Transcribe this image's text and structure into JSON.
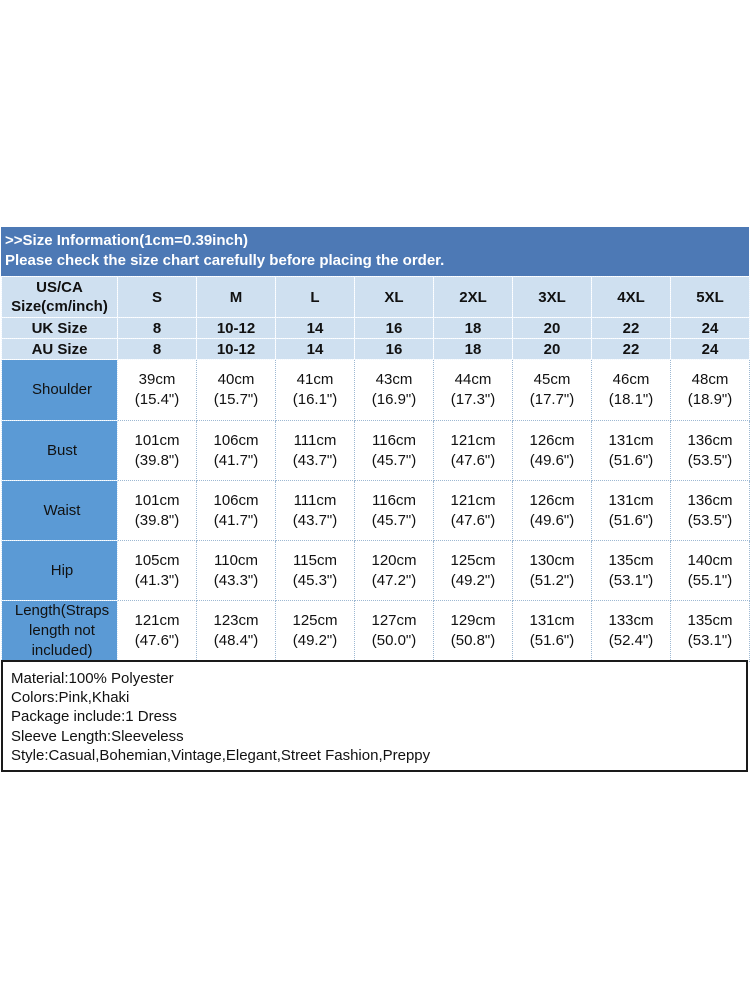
{
  "banner": {
    "line1": ">>Size Information(1cm=0.39inch)",
    "line2": "Please check the size chart carefully before placing the order."
  },
  "size_table": {
    "corner_label_line1": "US/CA",
    "corner_label_line2": "Size(cm/inch)",
    "sizes": [
      "S",
      "M",
      "L",
      "XL",
      "2XL",
      "3XL",
      "4XL",
      "5XL"
    ],
    "conversion_rows": [
      {
        "label": "UK Size",
        "values": [
          "8",
          "10-12",
          "14",
          "16",
          "18",
          "20",
          "22",
          "24"
        ]
      },
      {
        "label": "AU Size",
        "values": [
          "8",
          "10-12",
          "14",
          "16",
          "18",
          "20",
          "22",
          "24"
        ]
      }
    ],
    "measurement_rows": [
      {
        "label": "Shoulder",
        "cells": [
          {
            "cm": "39cm",
            "in": "(15.4\")"
          },
          {
            "cm": "40cm",
            "in": "(15.7\")"
          },
          {
            "cm": "41cm",
            "in": "(16.1\")"
          },
          {
            "cm": "43cm",
            "in": "(16.9\")"
          },
          {
            "cm": "44cm",
            "in": "(17.3\")"
          },
          {
            "cm": "45cm",
            "in": "(17.7\")"
          },
          {
            "cm": "46cm",
            "in": "(18.1\")"
          },
          {
            "cm": "48cm",
            "in": "(18.9\")"
          }
        ]
      },
      {
        "label": "Bust",
        "cells": [
          {
            "cm": "101cm",
            "in": "(39.8\")"
          },
          {
            "cm": "106cm",
            "in": "(41.7\")"
          },
          {
            "cm": "111cm",
            "in": "(43.7\")"
          },
          {
            "cm": "116cm",
            "in": "(45.7\")"
          },
          {
            "cm": "121cm",
            "in": "(47.6\")"
          },
          {
            "cm": "126cm",
            "in": "(49.6\")"
          },
          {
            "cm": "131cm",
            "in": "(51.6\")"
          },
          {
            "cm": "136cm",
            "in": "(53.5\")"
          }
        ]
      },
      {
        "label": "Waist",
        "cells": [
          {
            "cm": "101cm",
            "in": "(39.8\")"
          },
          {
            "cm": "106cm",
            "in": "(41.7\")"
          },
          {
            "cm": "111cm",
            "in": "(43.7\")"
          },
          {
            "cm": "116cm",
            "in": "(45.7\")"
          },
          {
            "cm": "121cm",
            "in": "(47.6\")"
          },
          {
            "cm": "126cm",
            "in": "(49.6\")"
          },
          {
            "cm": "131cm",
            "in": "(51.6\")"
          },
          {
            "cm": "136cm",
            "in": "(53.5\")"
          }
        ]
      },
      {
        "label": "Hip",
        "cells": [
          {
            "cm": "105cm",
            "in": "(41.3\")"
          },
          {
            "cm": "110cm",
            "in": "(43.3\")"
          },
          {
            "cm": "115cm",
            "in": "(45.3\")"
          },
          {
            "cm": "120cm",
            "in": "(47.2\")"
          },
          {
            "cm": "125cm",
            "in": "(49.2\")"
          },
          {
            "cm": "130cm",
            "in": "(51.2\")"
          },
          {
            "cm": "135cm",
            "in": "(53.1\")"
          },
          {
            "cm": "140cm",
            "in": "(55.1\")"
          }
        ]
      },
      {
        "label": "Length(Straps length not included)",
        "cells": [
          {
            "cm": "121cm",
            "in": "(47.6\")"
          },
          {
            "cm": "123cm",
            "in": "(48.4\")"
          },
          {
            "cm": "125cm",
            "in": "(49.2\")"
          },
          {
            "cm": "127cm",
            "in": "(50.0\")"
          },
          {
            "cm": "129cm",
            "in": "(50.8\")"
          },
          {
            "cm": "131cm",
            "in": "(51.6\")"
          },
          {
            "cm": "133cm",
            "in": "(52.4\")"
          },
          {
            "cm": "135cm",
            "in": "(53.1\")"
          }
        ]
      }
    ]
  },
  "details": {
    "lines": [
      "Material:100% Polyester",
      "Colors:Pink,Khaki",
      "Package include:1 Dress",
      "Sleeve Length:Sleeveless",
      "Style:Casual,Bohemian,Vintage,Elegant,Street Fashion,Preppy"
    ]
  },
  "colors": {
    "banner_bg": "#4d79b5",
    "banner_text": "#ffffff",
    "header_bg": "#cfe0f0",
    "row_label_bg": "#5b9ad5",
    "table_text": "#111111",
    "details_border": "#1a1a1a"
  }
}
